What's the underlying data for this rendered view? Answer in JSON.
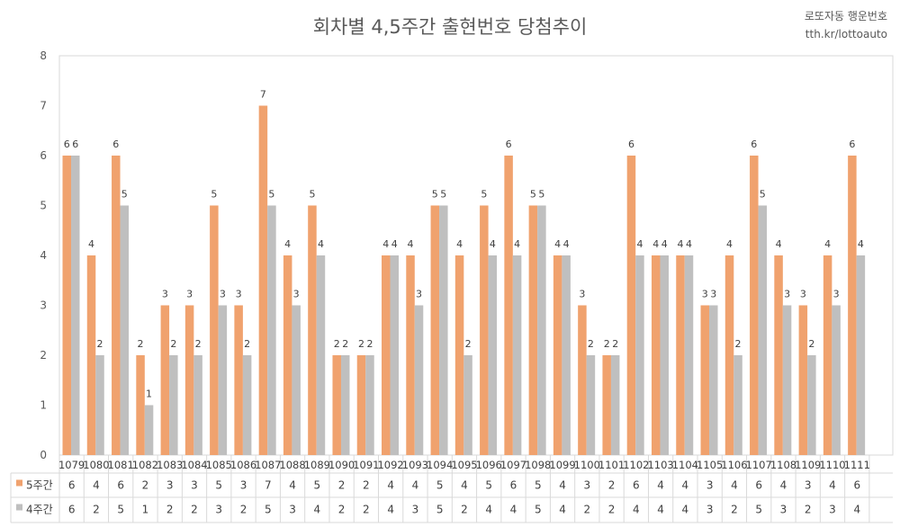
{
  "header": {
    "title": "회차별 4,5주간 출현번호 당첨추이",
    "brand_line1": "로또자동 행운번호",
    "brand_line2": "tth.kr/lottoauto"
  },
  "chart_data": {
    "type": "bar",
    "title": "회차별 4,5주간 출현번호 당첨추이",
    "categories": [
      "1079",
      "1080",
      "1081",
      "1082",
      "1083",
      "1084",
      "1085",
      "1086",
      "1087",
      "1088",
      "1089",
      "1090",
      "1091",
      "1092",
      "1093",
      "1094",
      "1095",
      "1096",
      "1097",
      "1098",
      "1099",
      "1100",
      "1101",
      "1102",
      "1103",
      "1104",
      "1105",
      "1106",
      "1107",
      "1108",
      "1109",
      "1110",
      "1111"
    ],
    "series": [
      {
        "name": "5주간",
        "color": "#f0a26e",
        "values": [
          6,
          4,
          6,
          2,
          3,
          3,
          5,
          3,
          7,
          4,
          5,
          2,
          2,
          4,
          4,
          5,
          4,
          5,
          6,
          5,
          4,
          3,
          2,
          6,
          4,
          4,
          3,
          4,
          6,
          4,
          3,
          4,
          6
        ]
      },
      {
        "name": "4주간",
        "color": "#bfbfbf",
        "values": [
          6,
          2,
          5,
          1,
          2,
          2,
          3,
          2,
          5,
          3,
          4,
          2,
          2,
          4,
          3,
          5,
          2,
          4,
          4,
          5,
          4,
          2,
          2,
          4,
          4,
          4,
          3,
          2,
          5,
          3,
          2,
          3,
          4
        ]
      }
    ],
    "ylim": [
      0,
      8
    ],
    "yticks": [
      0,
      1,
      2,
      3,
      4,
      5,
      6,
      7,
      8
    ],
    "grid": false,
    "legend": "data-table-left"
  }
}
